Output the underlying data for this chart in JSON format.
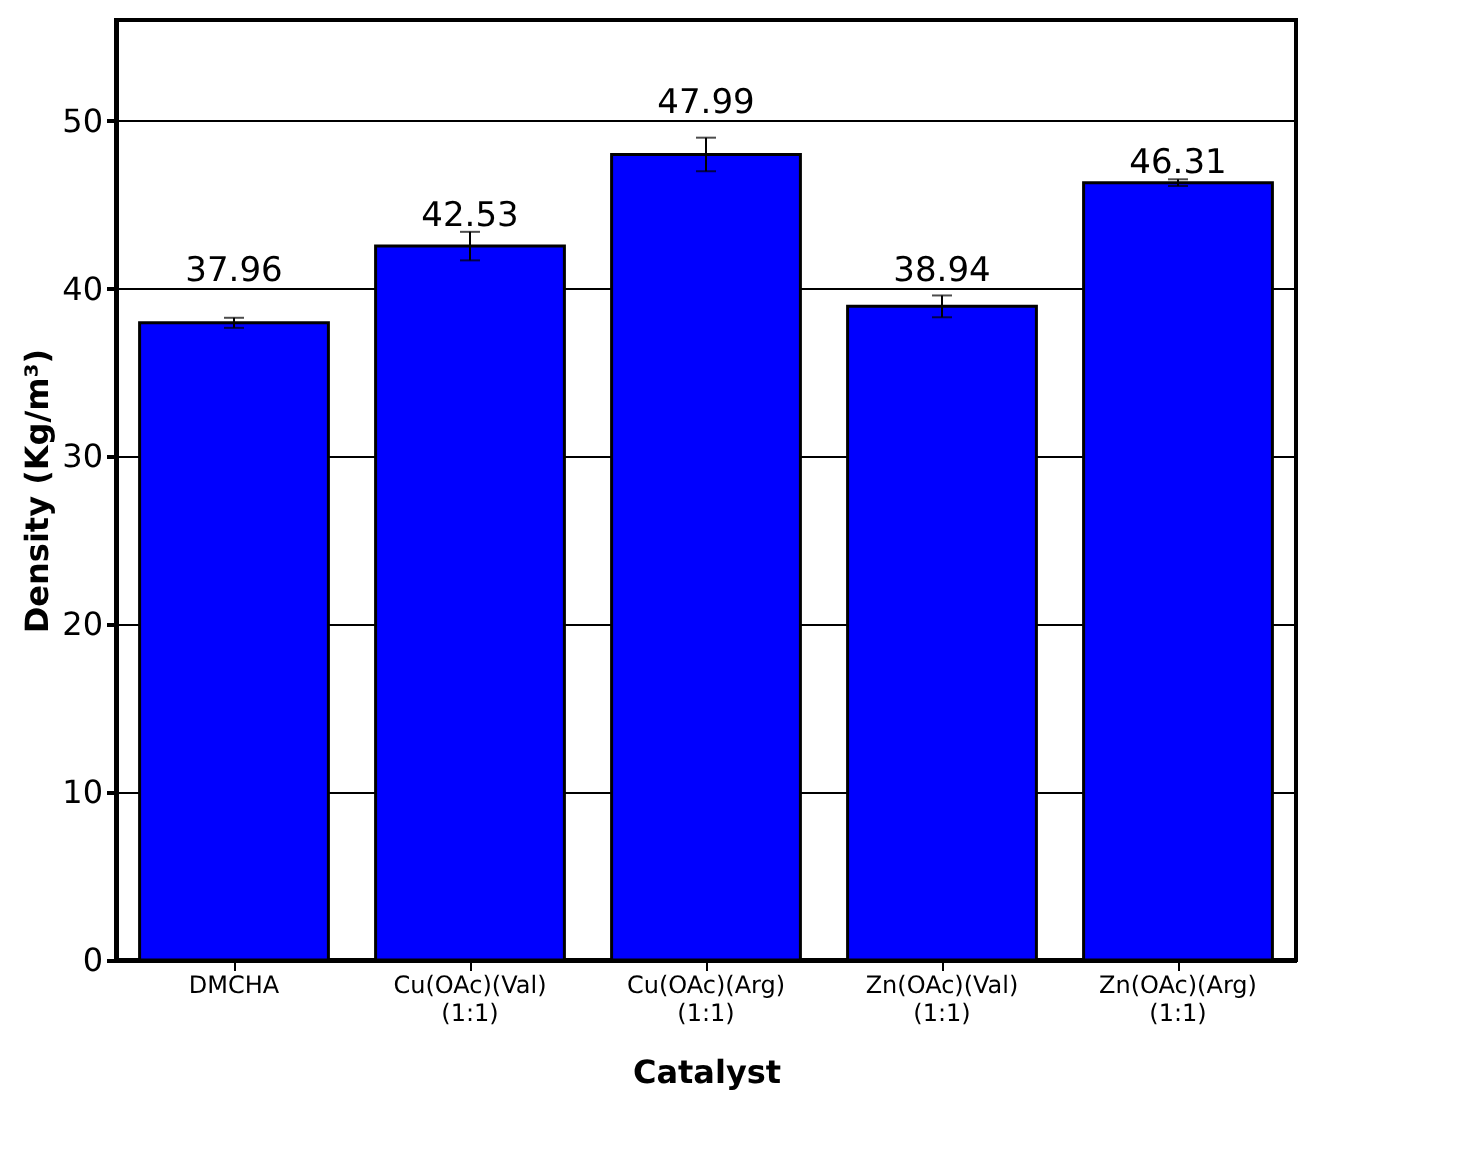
{
  "chart_data": {
    "type": "bar",
    "xlabel": "Catalyst",
    "ylabel": "Density (Kg/m³)",
    "categories": [
      "DMCHA",
      "Cu(OAc)(Val)\n\n(1:1)",
      "Cu(OAc)(Arg)\n\n(1:1)",
      "Zn(OAc)(Val)\n\n(1:1)",
      "Zn(OAc)(Arg)\n\n(1:1)"
    ],
    "values": [
      37.96,
      42.53,
      47.99,
      38.94,
      46.31
    ],
    "errors": [
      0.3,
      0.85,
      1.0,
      0.65,
      0.2
    ],
    "color": "#0000ff",
    "ylim": [
      0,
      56
    ],
    "yticks": [
      0,
      10,
      20,
      30,
      40,
      50
    ],
    "grid": "y",
    "data_labels": true
  }
}
